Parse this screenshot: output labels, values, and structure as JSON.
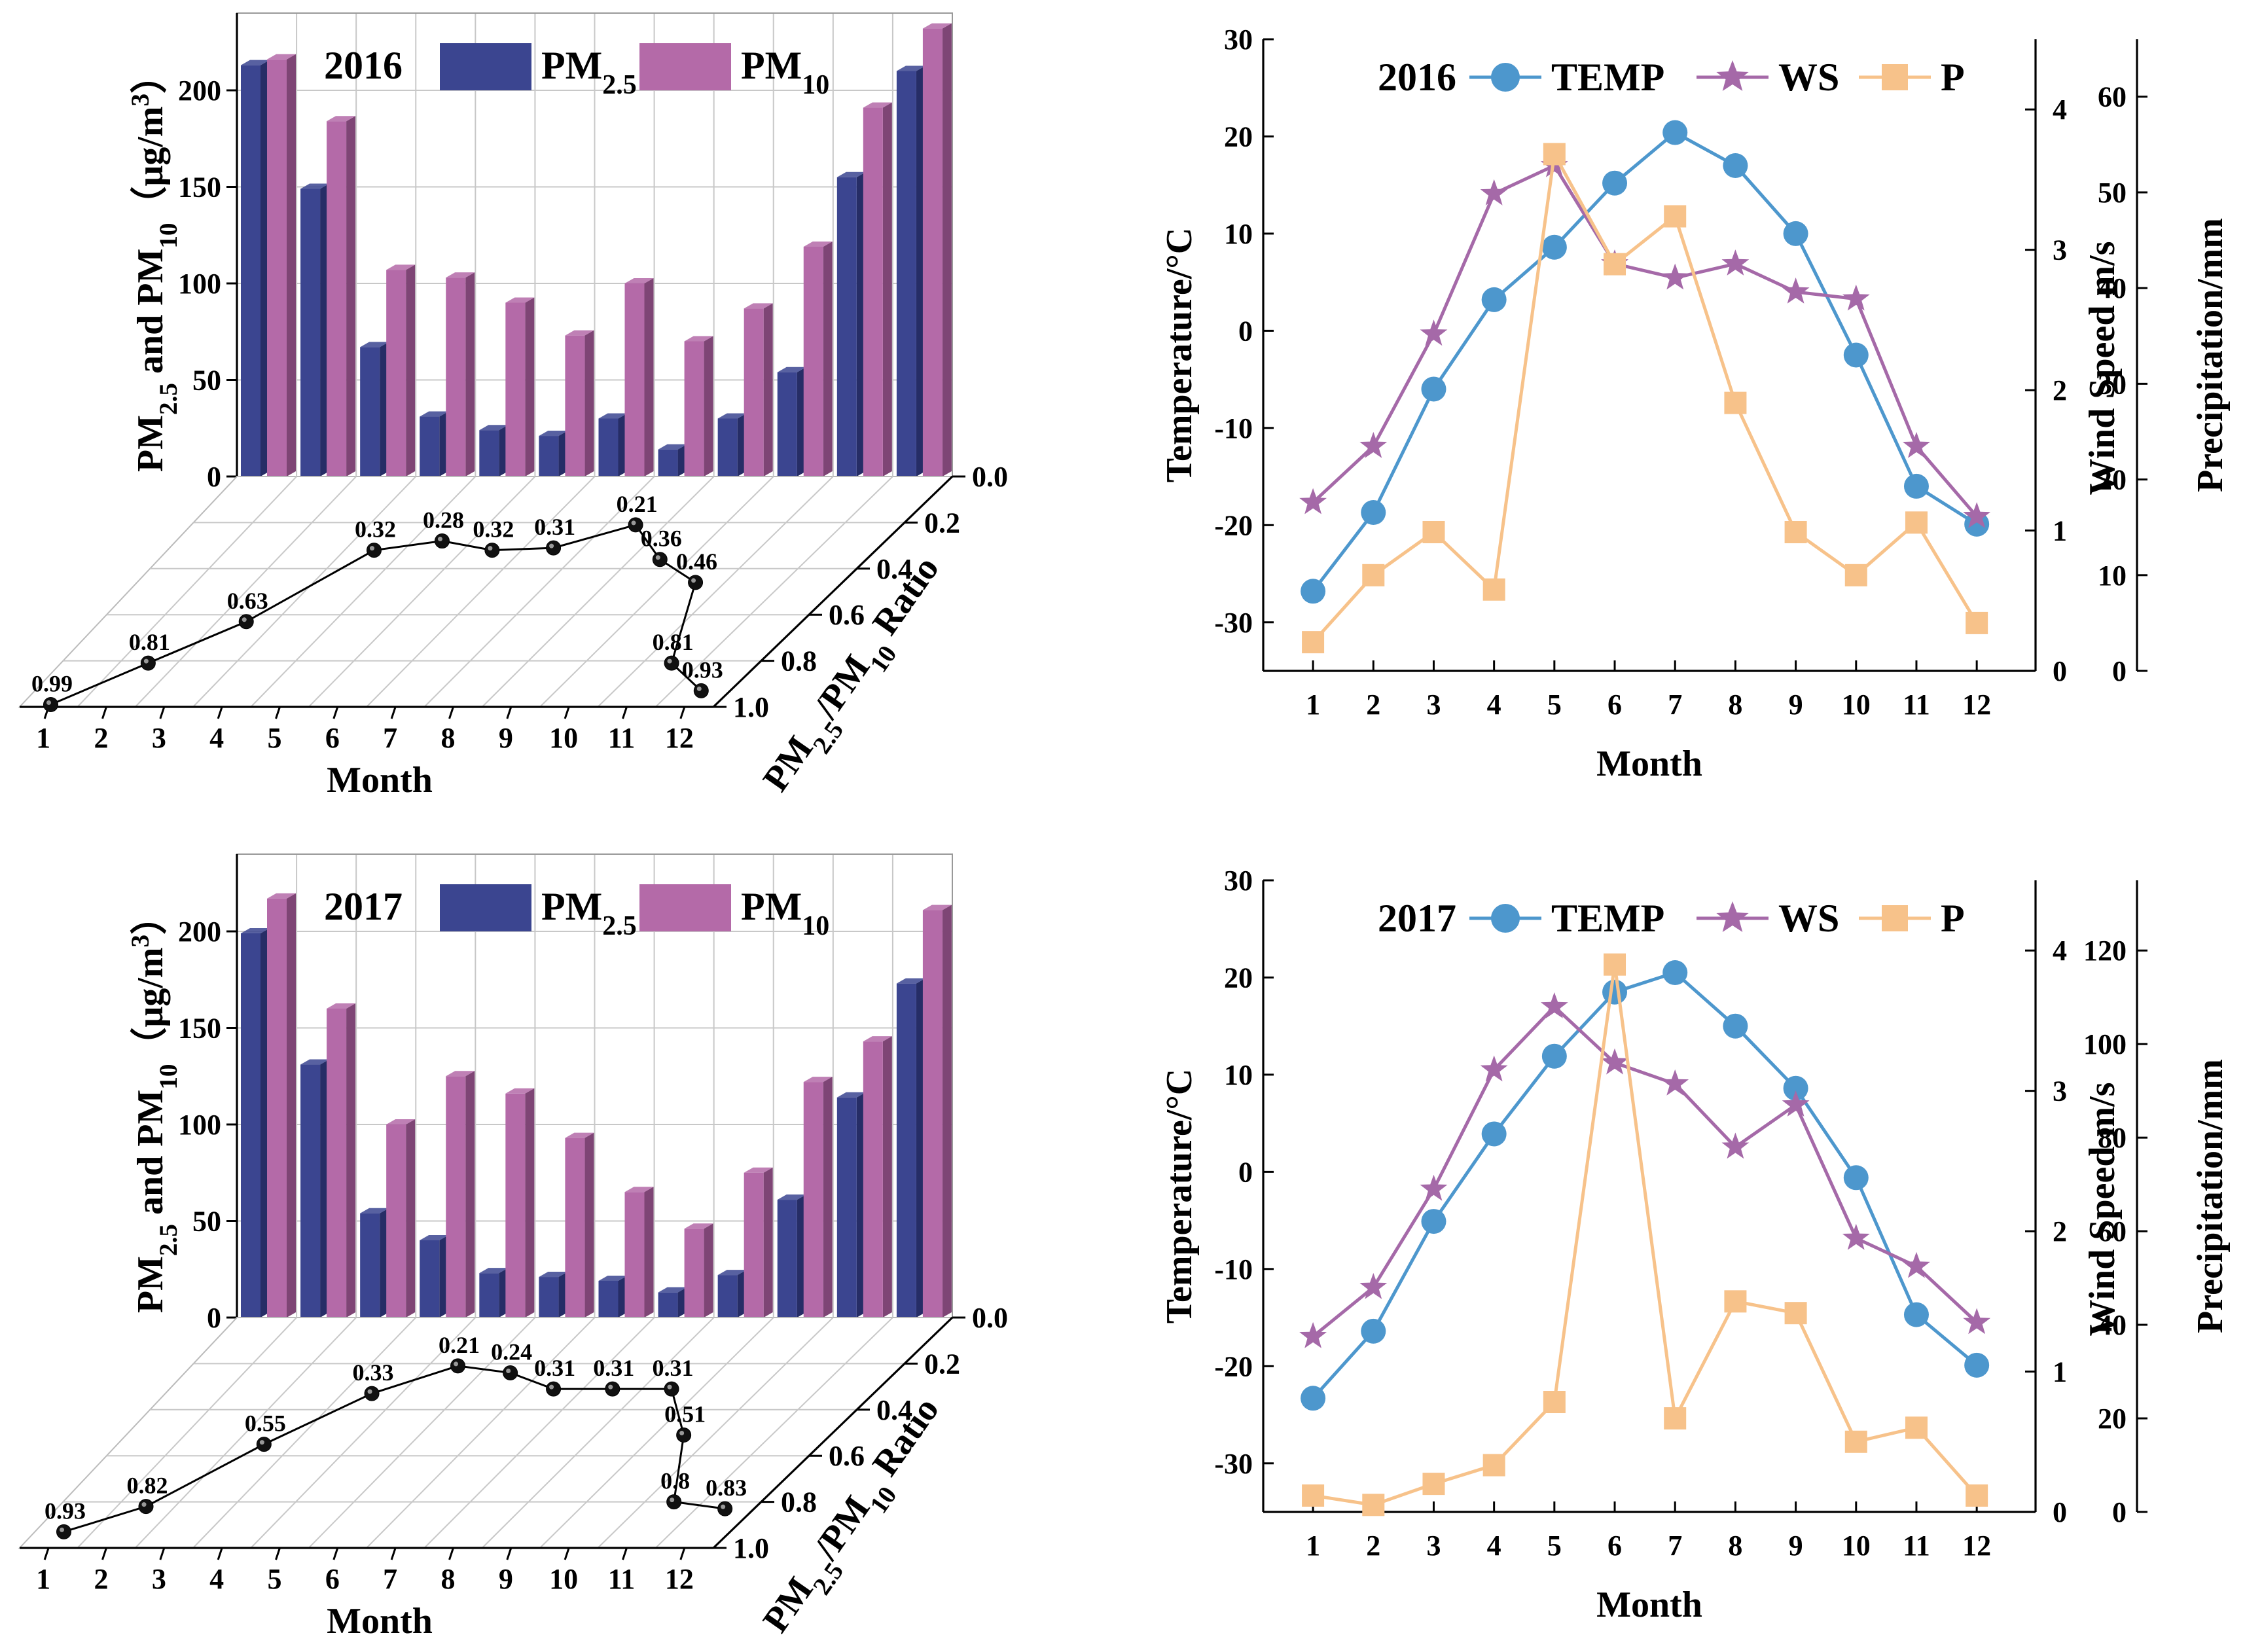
{
  "colors": {
    "pm25": "#3b4590",
    "pm25_side": "#262d66",
    "pm10": "#b46aa8",
    "pm10_side": "#7e4575",
    "temp": "#4d97cd",
    "ws": "#a569a8",
    "precip": "#f7c28a"
  },
  "chart_data": [
    {
      "type": "bar",
      "panel": "a",
      "year_label": "2016",
      "categories": [
        "1",
        "2",
        "3",
        "4",
        "5",
        "6",
        "7",
        "8",
        "9",
        "10",
        "11",
        "12"
      ],
      "series": [
        {
          "name": "PM2.5",
          "label_main": "PM",
          "label_sub": "2.5",
          "values": [
            213,
            149,
            67,
            31,
            24,
            21,
            30,
            14,
            30,
            54,
            155,
            210
          ]
        },
        {
          "name": "PM10",
          "label_main": "PM",
          "label_sub": "10",
          "values": [
            216,
            184,
            107,
            103,
            90,
            73,
            100,
            70,
            87,
            119,
            191,
            232
          ]
        }
      ],
      "ratio": {
        "name": "PM2.5/PM10 Ratio",
        "values": [
          0.99,
          0.81,
          0.63,
          0.32,
          0.28,
          0.32,
          0.31,
          0.21,
          0.36,
          0.46,
          0.81,
          0.93
        ],
        "labels": [
          "0.99",
          "0.81",
          "0.63",
          "0.32",
          "0.28",
          "0.32",
          "0.31",
          "0.21",
          "0.36",
          "0.46",
          "0.81",
          "0.93"
        ],
        "ylim": [
          0.0,
          1.0
        ],
        "ticks": [
          "0.0",
          "0.2",
          "0.4",
          "0.6",
          "0.8",
          "1.0"
        ],
        "ylabel_pre": "PM",
        "ylabel_sub1": "2.5",
        "ylabel_mid": "/PM",
        "ylabel_sub2": "10",
        "ylabel_post": " Ratio"
      },
      "ylim": [
        0,
        240
      ],
      "yticks": [
        "0",
        "50",
        "100",
        "150",
        "200"
      ],
      "xlabel": "Month",
      "ylabel_parts": [
        "PM",
        "2.5",
        " and PM",
        "10",
        "（μg/m",
        "3",
        "）"
      ]
    },
    {
      "type": "line",
      "panel": "b",
      "year_label": "2016",
      "x": [
        1,
        2,
        3,
        4,
        5,
        6,
        7,
        8,
        9,
        10,
        11,
        12
      ],
      "xticks": [
        "1",
        "2",
        "3",
        "4",
        "5",
        "6",
        "7",
        "8",
        "9",
        "10",
        "11",
        "12"
      ],
      "xlabel": "Month",
      "series": [
        {
          "name": "TEMP",
          "axis": "left",
          "marker": "circle",
          "values": [
            -26.8,
            -18.7,
            -6.0,
            3.2,
            8.6,
            15.2,
            20.4,
            17.0,
            10.0,
            -2.5,
            -16.0,
            -19.9
          ]
        },
        {
          "name": "WS",
          "axis": "ws",
          "marker": "star",
          "values": [
            1.2,
            1.6,
            2.4,
            3.4,
            3.6,
            2.9,
            2.8,
            2.9,
            2.7,
            2.65,
            1.6,
            1.1
          ]
        },
        {
          "name": "P",
          "axis": "precip",
          "marker": "square",
          "values": [
            3,
            10,
            14.5,
            8.5,
            54,
            42.5,
            47.5,
            28,
            14.5,
            10,
            15.5,
            5
          ]
        }
      ],
      "left_axis": {
        "label": "Temperature/°C",
        "ylim": [
          -35,
          30
        ],
        "ticks": [
          "30",
          "20",
          "10",
          "0",
          "-10",
          "-20",
          "-30"
        ]
      },
      "ws_axis": {
        "label": "Wind Speed m/s",
        "ylim": [
          0,
          4.5
        ],
        "ticks": [
          "0",
          "1",
          "2",
          "3",
          "4"
        ]
      },
      "precip_axis": {
        "label": "Precipitation/mm",
        "ylim": [
          0,
          66
        ],
        "ticks": [
          "0",
          "10",
          "20",
          "30",
          "40",
          "50",
          "60"
        ]
      }
    },
    {
      "type": "bar",
      "panel": "c",
      "year_label": "2017",
      "categories": [
        "1",
        "2",
        "3",
        "4",
        "5",
        "6",
        "7",
        "8",
        "9",
        "10",
        "11",
        "12"
      ],
      "series": [
        {
          "name": "PM2.5",
          "label_main": "PM",
          "label_sub": "2.5",
          "values": [
            199,
            131,
            54,
            40,
            23,
            21,
            19,
            13,
            22,
            61,
            114,
            173
          ]
        },
        {
          "name": "PM10",
          "label_main": "PM",
          "label_sub": "10",
          "values": [
            217,
            160,
            100,
            125,
            116,
            93,
            65,
            46,
            75,
            122,
            143,
            211
          ]
        }
      ],
      "ratio": {
        "name": "PM2.5/PM10 Ratio",
        "values": [
          0.93,
          0.82,
          0.55,
          0.33,
          0.21,
          0.24,
          0.31,
          0.31,
          0.31,
          0.51,
          0.8,
          0.83
        ],
        "labels": [
          "0.93",
          "0.82",
          "0.55",
          "0.33",
          "0.21",
          "0.24",
          "0.31",
          "0.31",
          "0.31",
          "0.51",
          "0.8",
          "0.83"
        ],
        "ylim": [
          0.0,
          1.0
        ],
        "ticks": [
          "0.0",
          "0.2",
          "0.4",
          "0.6",
          "0.8",
          "1.0"
        ],
        "ylabel_pre": "PM",
        "ylabel_sub1": "2.5",
        "ylabel_mid": "/PM",
        "ylabel_sub2": "10",
        "ylabel_post": " Ratio"
      },
      "ylim": [
        0,
        240
      ],
      "yticks": [
        "0",
        "50",
        "100",
        "150",
        "200"
      ],
      "xlabel": "Month",
      "ylabel_parts": [
        "PM",
        "2.5",
        " and PM",
        "10",
        "（μg/m",
        "3",
        "）"
      ]
    },
    {
      "type": "line",
      "panel": "d",
      "year_label": "2017",
      "x": [
        1,
        2,
        3,
        4,
        5,
        6,
        7,
        8,
        9,
        10,
        11,
        12
      ],
      "xticks": [
        "1",
        "2",
        "3",
        "4",
        "5",
        "6",
        "7",
        "8",
        "9",
        "10",
        "11",
        "12"
      ],
      "xlabel": "Month",
      "series": [
        {
          "name": "TEMP",
          "axis": "left",
          "marker": "circle",
          "values": [
            -23.3,
            -16.4,
            -5.1,
            3.9,
            11.9,
            18.5,
            20.5,
            15.0,
            8.6,
            -0.6,
            -14.7,
            -19.9
          ]
        },
        {
          "name": "WS",
          "axis": "ws",
          "marker": "star",
          "values": [
            1.25,
            1.6,
            2.3,
            3.15,
            3.6,
            3.2,
            3.05,
            2.6,
            2.9,
            1.95,
            1.75,
            1.35
          ]
        },
        {
          "name": "P",
          "axis": "precip",
          "marker": "square",
          "values": [
            3.5,
            1.5,
            6,
            10,
            23.5,
            117,
            20,
            45,
            42.5,
            15,
            18,
            3.5
          ]
        }
      ],
      "left_axis": {
        "label": "Temperature/°C",
        "ylim": [
          -35,
          30
        ],
        "ticks": [
          "30",
          "20",
          "10",
          "0",
          "-10",
          "-20",
          "-30"
        ]
      },
      "ws_axis": {
        "label": "Wind Speed m/s",
        "ylim": [
          0,
          4.5
        ],
        "ticks": [
          "0",
          "1",
          "2",
          "3",
          "4"
        ]
      },
      "precip_axis": {
        "label": "Precipitation/mm",
        "ylim": [
          0,
          135
        ],
        "ticks": [
          "0",
          "20",
          "40",
          "60",
          "80",
          "100",
          "120"
        ]
      }
    }
  ]
}
